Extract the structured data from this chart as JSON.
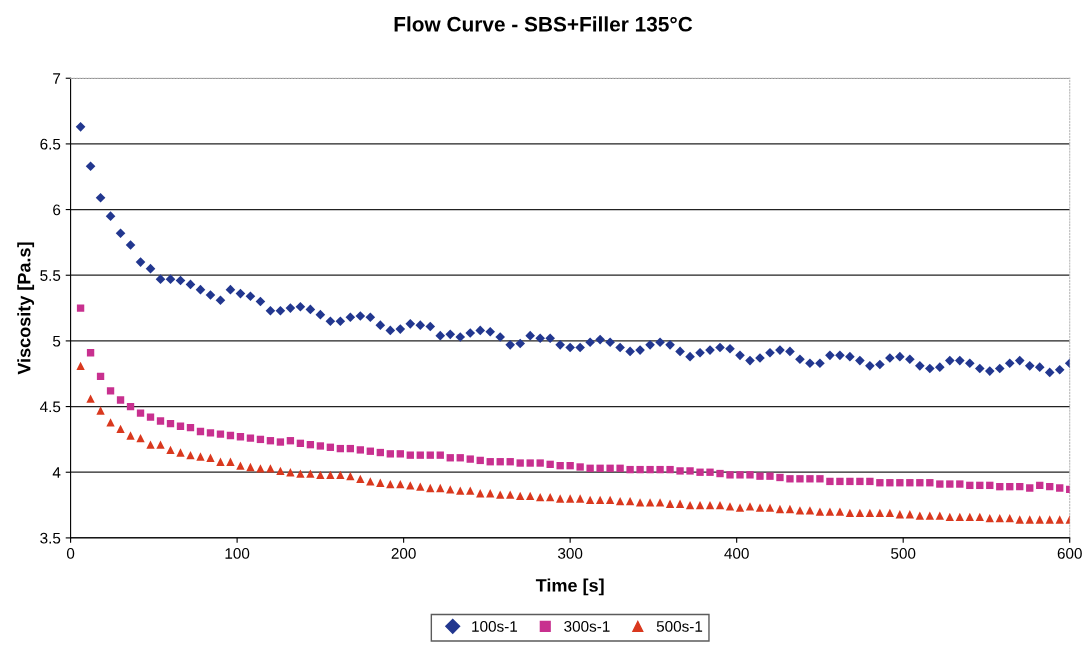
{
  "chart_data": {
    "type": "scatter",
    "title": "Flow Curve - SBS+Filler 135°C",
    "xlabel": "Time [s]",
    "ylabel": "Viscosity [Pa.s]",
    "x": [
      6,
      12,
      18,
      24,
      30,
      36,
      42,
      48,
      54,
      60,
      66,
      72,
      78,
      84,
      90,
      96,
      102,
      108,
      114,
      120,
      126,
      132,
      138,
      144,
      150,
      156,
      162,
      168,
      174,
      180,
      186,
      192,
      198,
      204,
      210,
      216,
      222,
      228,
      234,
      240,
      246,
      252,
      258,
      264,
      270,
      276,
      282,
      288,
      294,
      300,
      306,
      312,
      318,
      324,
      330,
      336,
      342,
      348,
      354,
      360,
      366,
      372,
      378,
      384,
      390,
      396,
      402,
      408,
      414,
      420,
      426,
      432,
      438,
      444,
      450,
      456,
      462,
      468,
      474,
      480,
      486,
      492,
      498,
      504,
      510,
      516,
      522,
      528,
      534,
      540,
      546,
      552,
      558,
      564,
      570,
      576,
      582,
      588,
      594,
      600
    ],
    "series": [
      {
        "name": "100s-1",
        "color": "#22378f",
        "marker": "diamond",
        "values": [
          6.63,
          6.33,
          6.09,
          5.95,
          5.82,
          5.73,
          5.6,
          5.55,
          5.47,
          5.47,
          5.46,
          5.43,
          5.39,
          5.35,
          5.31,
          5.39,
          5.36,
          5.34,
          5.3,
          5.23,
          5.23,
          5.25,
          5.26,
          5.24,
          5.2,
          5.15,
          5.15,
          5.18,
          5.19,
          5.18,
          5.12,
          5.08,
          5.09,
          5.13,
          5.12,
          5.11,
          5.04,
          5.05,
          5.03,
          5.06,
          5.08,
          5.07,
          5.03,
          4.97,
          4.98,
          5.04,
          5.02,
          5.02,
          4.97,
          4.95,
          4.95,
          4.99,
          5.01,
          4.99,
          4.95,
          4.92,
          4.93,
          4.97,
          4.99,
          4.97,
          4.92,
          4.88,
          4.91,
          4.93,
          4.95,
          4.94,
          4.89,
          4.85,
          4.87,
          4.91,
          4.93,
          4.92,
          4.86,
          4.83,
          4.83,
          4.89,
          4.89,
          4.88,
          4.85,
          4.81,
          4.82,
          4.87,
          4.88,
          4.86,
          4.81,
          4.79,
          4.8,
          4.85,
          4.85,
          4.83,
          4.79,
          4.77,
          4.79,
          4.83,
          4.85,
          4.81,
          4.8,
          4.76,
          4.78,
          4.83
        ]
      },
      {
        "name": "300s-1",
        "color": "#c8308f",
        "marker": "square",
        "values": [
          5.25,
          4.91,
          4.73,
          4.62,
          4.55,
          4.5,
          4.45,
          4.42,
          4.39,
          4.37,
          4.35,
          4.34,
          4.31,
          4.3,
          4.29,
          4.28,
          4.27,
          4.26,
          4.25,
          4.24,
          4.23,
          4.24,
          4.22,
          4.21,
          4.2,
          4.19,
          4.18,
          4.18,
          4.17,
          4.16,
          4.15,
          4.14,
          4.14,
          4.13,
          4.13,
          4.13,
          4.13,
          4.11,
          4.11,
          4.1,
          4.09,
          4.08,
          4.08,
          4.08,
          4.07,
          4.07,
          4.07,
          4.06,
          4.05,
          4.05,
          4.04,
          4.03,
          4.03,
          4.03,
          4.03,
          4.02,
          4.02,
          4.02,
          4.02,
          4.02,
          4.01,
          4.01,
          4.0,
          4.0,
          3.99,
          3.98,
          3.98,
          3.98,
          3.97,
          3.97,
          3.96,
          3.95,
          3.95,
          3.95,
          3.95,
          3.93,
          3.93,
          3.93,
          3.93,
          3.93,
          3.92,
          3.92,
          3.92,
          3.92,
          3.92,
          3.92,
          3.91,
          3.91,
          3.91,
          3.9,
          3.9,
          3.9,
          3.89,
          3.89,
          3.89,
          3.88,
          3.9,
          3.89,
          3.88,
          3.87
        ]
      },
      {
        "name": "500s-1",
        "color": "#d9381e",
        "marker": "triangle",
        "values": [
          4.81,
          4.56,
          4.47,
          4.38,
          4.33,
          4.28,
          4.26,
          4.21,
          4.21,
          4.17,
          4.15,
          4.13,
          4.12,
          4.11,
          4.08,
          4.08,
          4.05,
          4.04,
          4.03,
          4.03,
          4.01,
          4.0,
          3.99,
          3.99,
          3.98,
          3.98,
          3.98,
          3.97,
          3.95,
          3.93,
          3.92,
          3.91,
          3.91,
          3.9,
          3.89,
          3.88,
          3.88,
          3.87,
          3.86,
          3.86,
          3.84,
          3.84,
          3.83,
          3.83,
          3.82,
          3.82,
          3.81,
          3.81,
          3.8,
          3.8,
          3.8,
          3.79,
          3.79,
          3.79,
          3.78,
          3.78,
          3.77,
          3.77,
          3.77,
          3.76,
          3.76,
          3.75,
          3.75,
          3.75,
          3.75,
          3.74,
          3.73,
          3.74,
          3.73,
          3.73,
          3.72,
          3.72,
          3.71,
          3.71,
          3.7,
          3.7,
          3.7,
          3.69,
          3.69,
          3.69,
          3.69,
          3.69,
          3.68,
          3.68,
          3.67,
          3.67,
          3.67,
          3.66,
          3.66,
          3.66,
          3.66,
          3.65,
          3.65,
          3.65,
          3.64,
          3.64,
          3.64,
          3.64,
          3.64,
          3.64
        ]
      }
    ],
    "xlim": [
      0,
      600
    ],
    "xticks": [
      0,
      100,
      200,
      300,
      400,
      500,
      600
    ],
    "ylim": [
      3.5,
      7
    ],
    "yticks": [
      3.5,
      4,
      4.5,
      5,
      5.5,
      6,
      6.5,
      7
    ],
    "grid": "y",
    "legend": "bottom"
  }
}
